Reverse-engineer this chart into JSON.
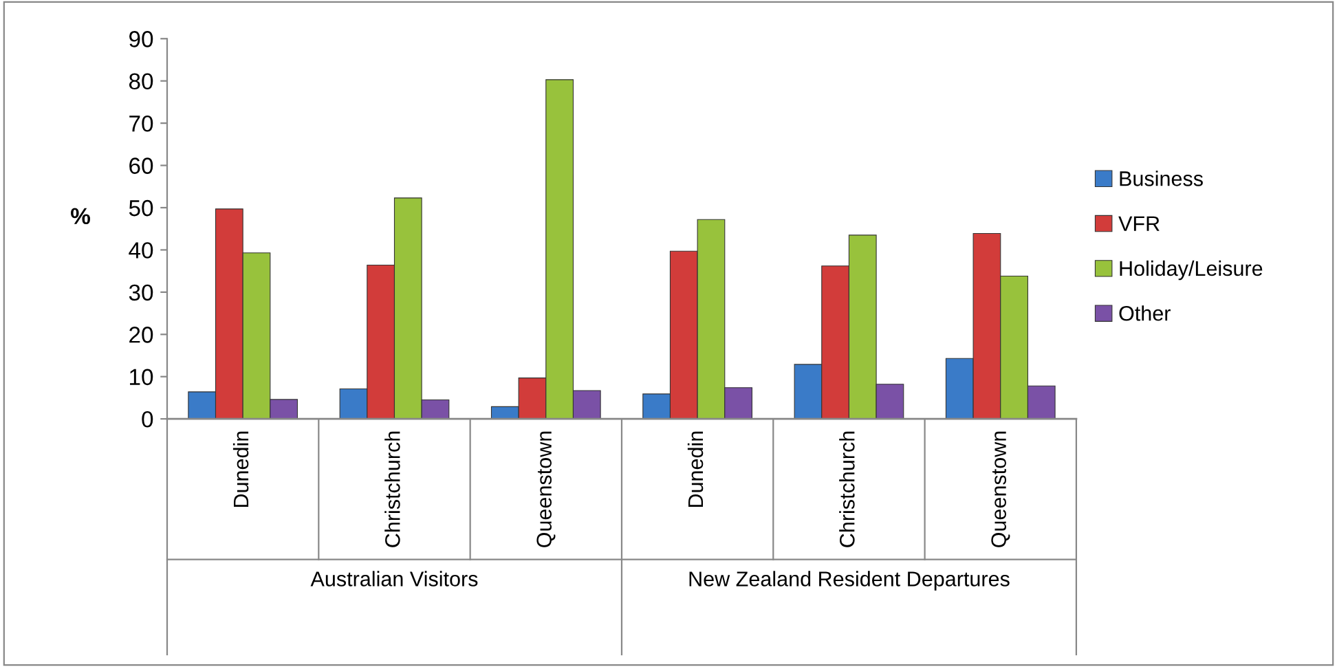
{
  "chart_data": {
    "type": "bar",
    "ylabel": "%",
    "categories": [
      "Dunedin",
      "Christchurch",
      "Queenstown",
      "Dunedin",
      "Christchurch",
      "Queenstown"
    ],
    "series": [
      {
        "name": "Business",
        "color": "#3a7bc8",
        "values": [
          6.4,
          7.1,
          2.9,
          5.9,
          12.9,
          14.3
        ]
      },
      {
        "name": "VFR",
        "color": "#d23c3a",
        "values": [
          49.7,
          36.4,
          9.7,
          39.7,
          36.2,
          43.9
        ]
      },
      {
        "name": "Holiday/Leisure",
        "color": "#98c23c",
        "values": [
          39.3,
          52.3,
          80.3,
          47.2,
          43.5,
          33.8
        ]
      },
      {
        "name": "Other",
        "color": "#7a51a6",
        "values": [
          4.6,
          4.5,
          6.7,
          7.4,
          8.2,
          7.8
        ]
      }
    ],
    "annotations": [
      "Australian Visitors",
      "New Zealand Resident Departures"
    ],
    "ylim": [
      0,
      90
    ],
    "yticks": [
      0,
      10,
      20,
      30,
      40,
      50,
      60,
      70,
      80,
      90
    ],
    "grid": false,
    "legend": "right"
  }
}
